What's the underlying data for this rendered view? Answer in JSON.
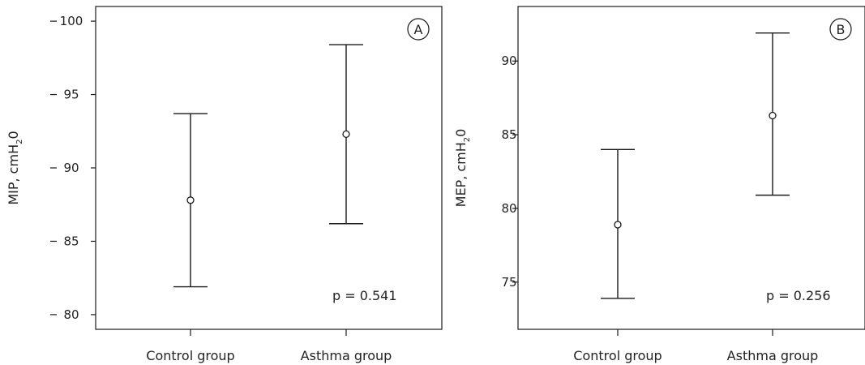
{
  "chart_data": [
    {
      "type": "errorbar",
      "panel": "A",
      "ylabel": {
        "main": "MIP, cmH",
        "sub": "2",
        "end": "0"
      },
      "categories": [
        "Control group",
        "Asthma group"
      ],
      "mean": [
        87.8,
        92.3
      ],
      "lower": [
        81.9,
        86.2
      ],
      "upper": [
        93.7,
        98.4
      ],
      "ylim": [
        79,
        101
      ],
      "yticks": [
        80,
        85,
        90,
        95,
        100
      ],
      "annotation": "p = 0.541"
    },
    {
      "type": "errorbar",
      "panel": "B",
      "ylabel": {
        "main": "MEP, cmH",
        "sub": "2",
        "end": "0"
      },
      "categories": [
        "Control group",
        "Asthma group"
      ],
      "mean": [
        78.9,
        86.3
      ],
      "lower": [
        73.9,
        80.9
      ],
      "upper": [
        84.0,
        91.9
      ],
      "ylim": [
        71.8,
        93.7
      ],
      "yticks": [
        75,
        80,
        85,
        90
      ],
      "annotation": "p = 0.256"
    }
  ]
}
